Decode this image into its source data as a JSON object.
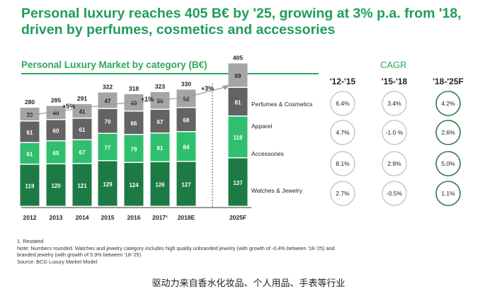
{
  "title": "Personal luxury reaches 405 B€ by '25, growing at 3% p.a. from '18, driven by perfumes, cosmetics and accessories",
  "subtitle": "Personal Luxury Market by category (B€)",
  "cagr_title": "CAGR",
  "colors": {
    "perfumes": "#a5a5a5",
    "apparel": "#636363",
    "accessories": "#2fbf6f",
    "watches": "#1d7a45",
    "accent": "#2fa85c",
    "circle_grey": "#bdbdbd",
    "circle_green": "#2f7d4b"
  },
  "chart_data": {
    "type": "bar",
    "stacked": true,
    "title": "Personal Luxury Market by category (B€)",
    "categories": [
      "2012",
      "2013",
      "2014",
      "2015",
      "2016",
      "2017¹",
      "2018E",
      "2025F"
    ],
    "series": [
      {
        "name": "Watches & Jewelry",
        "values": [
          119,
          120,
          121,
          129,
          124,
          126,
          127,
          137
        ]
      },
      {
        "name": "Accessories",
        "values": [
          61,
          65,
          67,
          77,
          79,
          81,
          84,
          118
        ]
      },
      {
        "name": "Apparel",
        "values": [
          61,
          60,
          61,
          70,
          66,
          67,
          68,
          81
        ]
      },
      {
        "name": "Perfumes & Cosmetics",
        "values": [
          39,
          40,
          41,
          47,
          49,
          50,
          52,
          69
        ]
      }
    ],
    "totals": [
      "280",
      "285",
      "291",
      "322",
      "318",
      "323",
      "330",
      "405"
    ],
    "growth_annotations": [
      "+5%",
      "+1%",
      "+3%"
    ],
    "cagr": {
      "periods": [
        "'12-'15",
        "'15-'18",
        "'18-'25F"
      ],
      "rows": [
        {
          "category": "Perfumes & Cosmetics",
          "values": [
            "6.4%",
            "3.4%",
            "4.2%"
          ]
        },
        {
          "category": "Apparel",
          "values": [
            "4.7%",
            "-1.0 %",
            "2.6%"
          ]
        },
        {
          "category": "Accessories",
          "values": [
            "8.1%",
            "2.9%",
            "5.0%"
          ]
        },
        {
          "category": "Watches & Jewelry",
          "values": [
            "2.7%",
            "-0.5%",
            "1.1%"
          ]
        }
      ]
    }
  },
  "notes": [
    "1. Restated",
    "Note: Numbers rounded.  Watches and jewelry category includes high quality unbranded jewelry (with growth of -0.4% between '18-'25) and",
    "branded jewelry (with growth of 5.9% between '18-'25)",
    "Source: BCG Luxury Market Model"
  ],
  "caption": "驱动力来自香水化妆品、个人用品、手表等行业"
}
